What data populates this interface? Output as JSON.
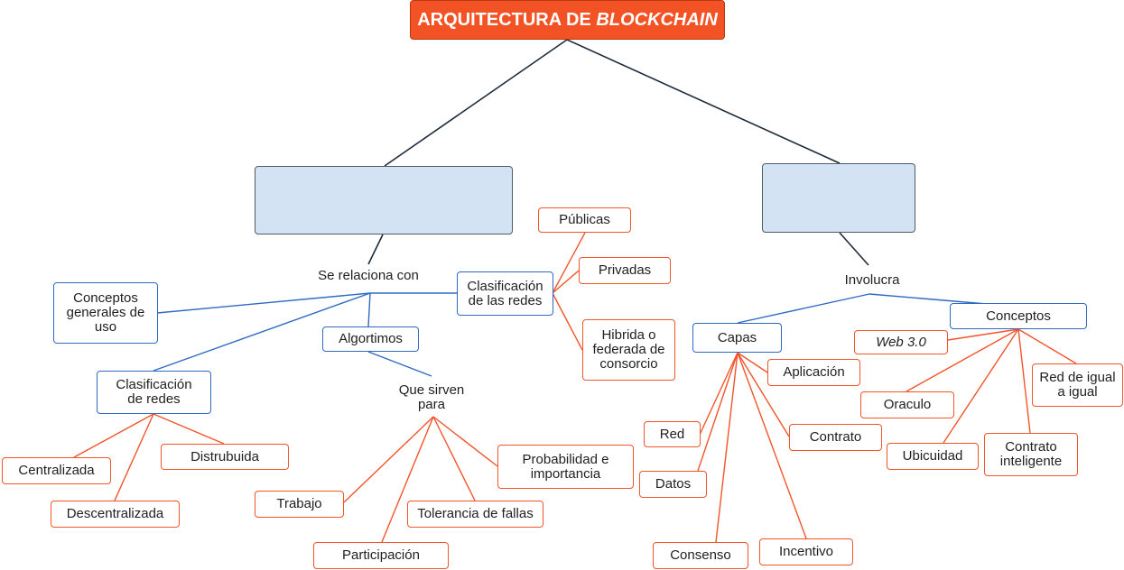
{
  "title": {
    "main": "ARQUITECTURA DE ",
    "emphasis": "BLOCKCHAIN"
  },
  "left": {
    "relation_label": "Se relaciona con",
    "conceptos_generales": "Conceptos\ngenerales de\nuso",
    "clasificacion_redes": {
      "label": "Clasificación\nde redes",
      "items": [
        "Centralizada",
        "Distrubuida",
        "Descentralizada"
      ]
    },
    "algoritmos": {
      "label": "Algortimos",
      "purpose_label": "Que sirven\npara",
      "items": [
        "Trabajo",
        "Participación",
        "Tolerancia de fallas",
        "Probabilidad e\nimportancia"
      ]
    },
    "clasificacion_de_las_redes": {
      "label": "Clasificación\nde las redes",
      "items": [
        "Públicas",
        "Privadas",
        "Hibrida o\nfederada de\nconsorcio"
      ]
    }
  },
  "right": {
    "relation_label": "Involucra",
    "capas": {
      "label": "Capas",
      "items": [
        "Aplicación",
        "Red",
        "Contrato",
        "Datos",
        "Consenso",
        "Incentivo"
      ]
    },
    "conceptos": {
      "label": "Conceptos",
      "items": [
        "Web 3.0",
        "Oraculo",
        "Ubicuidad",
        "Contrato\ninteligente",
        "Red de igual\na igual"
      ]
    }
  },
  "colors": {
    "title": "#f25224",
    "blue": "#2f6bc2",
    "orange": "#f2552a",
    "placeholder": "#d4e3f4",
    "dark": "#1d2b3a"
  }
}
